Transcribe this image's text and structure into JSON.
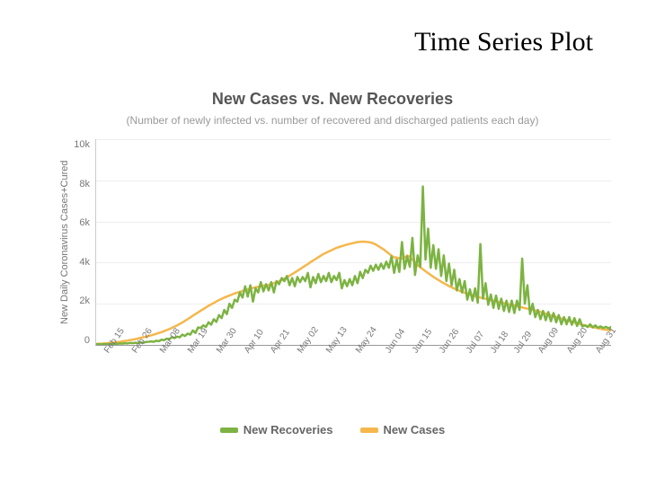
{
  "slide": {
    "title": "Time Series Plot"
  },
  "chart": {
    "type": "line",
    "title": "New Cases vs. New Recoveries",
    "subtitle": "(Number of newly infected vs. number of recovered and discharged patients each day)",
    "y_axis_label": "New Daily Coronavirus Cases+Cured",
    "ylim": [
      0,
      10000
    ],
    "yticks": [
      "10k",
      "8k",
      "6k",
      "4k",
      "2k",
      "0"
    ],
    "ytick_values": [
      10000,
      8000,
      6000,
      4000,
      2000,
      0
    ],
    "xticks": [
      "Feb 15",
      "Feb 26",
      "Mar 08",
      "Mar 19",
      "Mar 30",
      "Apr 10",
      "Apr 21",
      "May 02",
      "May 13",
      "May 24",
      "Jun 04",
      "Jun 15",
      "Jun 26",
      "Jul 07",
      "Jul 18",
      "Jul 29",
      "Aug 09",
      "Aug 20",
      "Aug 31"
    ],
    "background_color": "#ffffff",
    "grid_color": "#eeeeee",
    "axis_color": "#999999",
    "title_color": "#555555",
    "subtitle_color": "#999999",
    "tick_color": "#777777",
    "title_fontsize": 18,
    "subtitle_fontsize": 12,
    "tick_fontsize": 11,
    "line_width": 2.5,
    "series": {
      "new_recoveries": {
        "label": "New Recoveries",
        "color": "#7cb342",
        "values": [
          30,
          40,
          30,
          40,
          35,
          50,
          40,
          60,
          50,
          70,
          60,
          80,
          70,
          95,
          85,
          105,
          90,
          120,
          100,
          140,
          150,
          170,
          150,
          200,
          180,
          250,
          230,
          300,
          280,
          380,
          330,
          400,
          370,
          500,
          430,
          550,
          500,
          700,
          580,
          850,
          820,
          950,
          870,
          1100,
          980,
          1250,
          1120,
          1450,
          1300,
          1700,
          1500,
          2000,
          1800,
          2200,
          2100,
          2550,
          2300,
          2850,
          2350,
          2900,
          2100,
          2750,
          2550,
          3050,
          2600,
          2950,
          2650,
          3050,
          2550,
          3100,
          2950,
          3250,
          3100,
          3350,
          2900,
          3250,
          2850,
          3300,
          3050,
          3300,
          3100,
          3500,
          2800,
          3300,
          3000,
          3450,
          3050,
          3350,
          3100,
          3500,
          3050,
          3350,
          3150,
          3500,
          2750,
          3150,
          2850,
          3200,
          2900,
          3350,
          3000,
          3550,
          3250,
          3650,
          3500,
          3850,
          3600,
          3900,
          3650,
          3950,
          3700,
          4050,
          3750,
          4300,
          3500,
          4150,
          3550,
          5000,
          3700,
          4300,
          3800,
          5200,
          3400,
          4350,
          3800,
          7700,
          4150,
          5650,
          3750,
          4850,
          3700,
          4650,
          3350,
          4350,
          3100,
          3950,
          2900,
          3650,
          2650,
          3200,
          2550,
          3100,
          2200,
          2700,
          2150,
          2750,
          2050,
          4900,
          2250,
          3000,
          1950,
          2450,
          1800,
          2400,
          1750,
          2250,
          1650,
          2150,
          1600,
          2150,
          1550,
          2150,
          1700,
          4200,
          2000,
          2900,
          1500,
          2000,
          1350,
          1700,
          1250,
          1650,
          1200,
          1600,
          1150,
          1550,
          1100,
          1450,
          1000,
          1350,
          1000,
          1350,
          980,
          1300,
          920,
          1250,
          900,
          950,
          870,
          1000,
          850,
          950,
          830,
          900,
          820,
          880,
          810,
          870
        ]
      },
      "new_cases": {
        "label": "New Cases",
        "color": "#f5b74c",
        "values": [
          50,
          55,
          60,
          70,
          80,
          95,
          105,
          120,
          135,
          150,
          170,
          190,
          210,
          235,
          255,
          280,
          310,
          340,
          370,
          400,
          430,
          460,
          500,
          540,
          580,
          620,
          670,
          720,
          770,
          830,
          890,
          950,
          1020,
          1090,
          1170,
          1250,
          1330,
          1420,
          1500,
          1580,
          1660,
          1740,
          1820,
          1900,
          1970,
          2040,
          2110,
          2180,
          2240,
          2300,
          2350,
          2400,
          2450,
          2500,
          2540,
          2580,
          2620,
          2660,
          2700,
          2740,
          2770,
          2800,
          2830,
          2860,
          2880,
          2900,
          2920,
          2960,
          3000,
          3050,
          3100,
          3160,
          3220,
          3300,
          3360,
          3440,
          3520,
          3600,
          3680,
          3770,
          3850,
          3930,
          4020,
          4100,
          4180,
          4260,
          4340,
          4420,
          4480,
          4540,
          4600,
          4660,
          4720,
          4760,
          4800,
          4840,
          4880,
          4910,
          4940,
          4970,
          5000,
          5010,
          5020,
          5010,
          5000,
          4980,
          4940,
          4880,
          4800,
          4720,
          4640,
          4540,
          4440,
          4340,
          4250,
          4250,
          4200,
          4200,
          4250,
          4350,
          4280,
          4150,
          4010,
          3880,
          3770,
          3680,
          3580,
          3490,
          3400,
          3310,
          3230,
          3150,
          3070,
          3000,
          2930,
          2860,
          2800,
          2740,
          2680,
          2630,
          2580,
          2530,
          2490,
          2450,
          2410,
          2370,
          2330,
          2300,
          2270,
          2240,
          2210,
          2180,
          2150,
          2120,
          2090,
          2060,
          2030,
          2000,
          1970,
          1940,
          1910,
          1880,
          1850,
          1820,
          1790,
          1760,
          1730,
          1700,
          1670,
          1640,
          1600,
          1560,
          1520,
          1480,
          1440,
          1400,
          1360,
          1320,
          1280,
          1240,
          1200,
          1160,
          1120,
          1085,
          1050,
          1015,
          980,
          950,
          920,
          890,
          860,
          835,
          810,
          785,
          760,
          740,
          720,
          700
        ]
      }
    },
    "legend": {
      "position": "bottom",
      "items": [
        {
          "key": "new_recoveries",
          "swatch": "#7cb342",
          "label": "New Recoveries"
        },
        {
          "key": "new_cases",
          "swatch": "#f5b74c",
          "label": "New Cases"
        }
      ]
    }
  }
}
